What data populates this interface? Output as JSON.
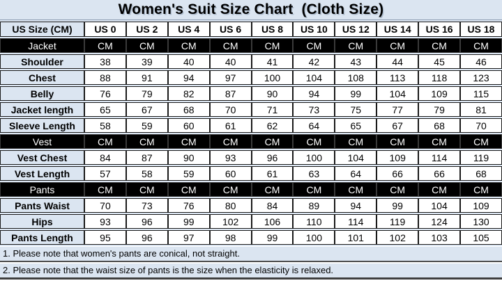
{
  "title": "Women's Suit Size Chart  (Cloth Size)",
  "colors": {
    "light_blue_bg": "#dbe5f1",
    "section_row_bg": "#000000",
    "cell_bg": "#ffffff",
    "border": "#1a1a1a",
    "text": "#000000",
    "section_text": "#ffffff"
  },
  "chart_data": {
    "type": "table",
    "title": "Women's Suit Size Chart  (Cloth Size)",
    "columns": [
      "US Size (CM)",
      "US 0",
      "US 2",
      "US 4",
      "US 6",
      "US 8",
      "US 10",
      "US 12",
      "US 14",
      "US 16",
      "US 18"
    ],
    "rows": [
      {
        "label": "Jacket",
        "type": "section",
        "values": [
          "CM",
          "CM",
          "CM",
          "CM",
          "CM",
          "CM",
          "CM",
          "CM",
          "CM",
          "CM"
        ]
      },
      {
        "label": "Shoulder",
        "type": "data",
        "values": [
          38,
          39,
          40,
          40,
          41,
          42,
          43,
          44,
          45,
          46
        ]
      },
      {
        "label": "Chest",
        "type": "data",
        "values": [
          88,
          91,
          94,
          97,
          100,
          104,
          108,
          113,
          118,
          123
        ]
      },
      {
        "label": "Belly",
        "type": "data",
        "values": [
          76,
          79,
          82,
          87,
          90,
          94,
          99,
          104,
          109,
          115
        ]
      },
      {
        "label": "Jacket length",
        "type": "data",
        "values": [
          65,
          67,
          68,
          70,
          71,
          73,
          75,
          77,
          79,
          81
        ]
      },
      {
        "label": "Sleeve Length",
        "type": "data",
        "values": [
          58,
          59,
          60,
          61,
          62,
          64,
          65,
          67,
          68,
          70
        ]
      },
      {
        "label": "Vest",
        "type": "section",
        "values": [
          "CM",
          "CM",
          "CM",
          "CM",
          "CM",
          "CM",
          "CM",
          "CM",
          "CM",
          "CM"
        ]
      },
      {
        "label": "Vest Chest",
        "type": "data",
        "values": [
          84,
          87,
          90,
          93,
          96,
          100,
          104,
          109,
          114,
          119
        ]
      },
      {
        "label": "Vest Length",
        "type": "data",
        "values": [
          57,
          58,
          59,
          60,
          61,
          63,
          64,
          66,
          66,
          68
        ]
      },
      {
        "label": "Pants",
        "type": "section",
        "values": [
          "CM",
          "CM",
          "CM",
          "CM",
          "CM",
          "CM",
          "CM",
          "CM",
          "CM",
          "CM"
        ]
      },
      {
        "label": "Pants Waist",
        "type": "data",
        "values": [
          70,
          73,
          76,
          80,
          84,
          89,
          94,
          99,
          104,
          109
        ]
      },
      {
        "label": "Hips",
        "type": "data",
        "values": [
          93,
          96,
          99,
          102,
          106,
          110,
          114,
          119,
          124,
          130
        ]
      },
      {
        "label": "Pants Length",
        "type": "data",
        "values": [
          95,
          96,
          97,
          98,
          99,
          100,
          101,
          102,
          103,
          105
        ]
      }
    ]
  },
  "notes": [
    "1. Please note that women's pants are conical, not straight.",
    "2. Please note that the waist size of pants is the size when the elasticity is relaxed."
  ]
}
